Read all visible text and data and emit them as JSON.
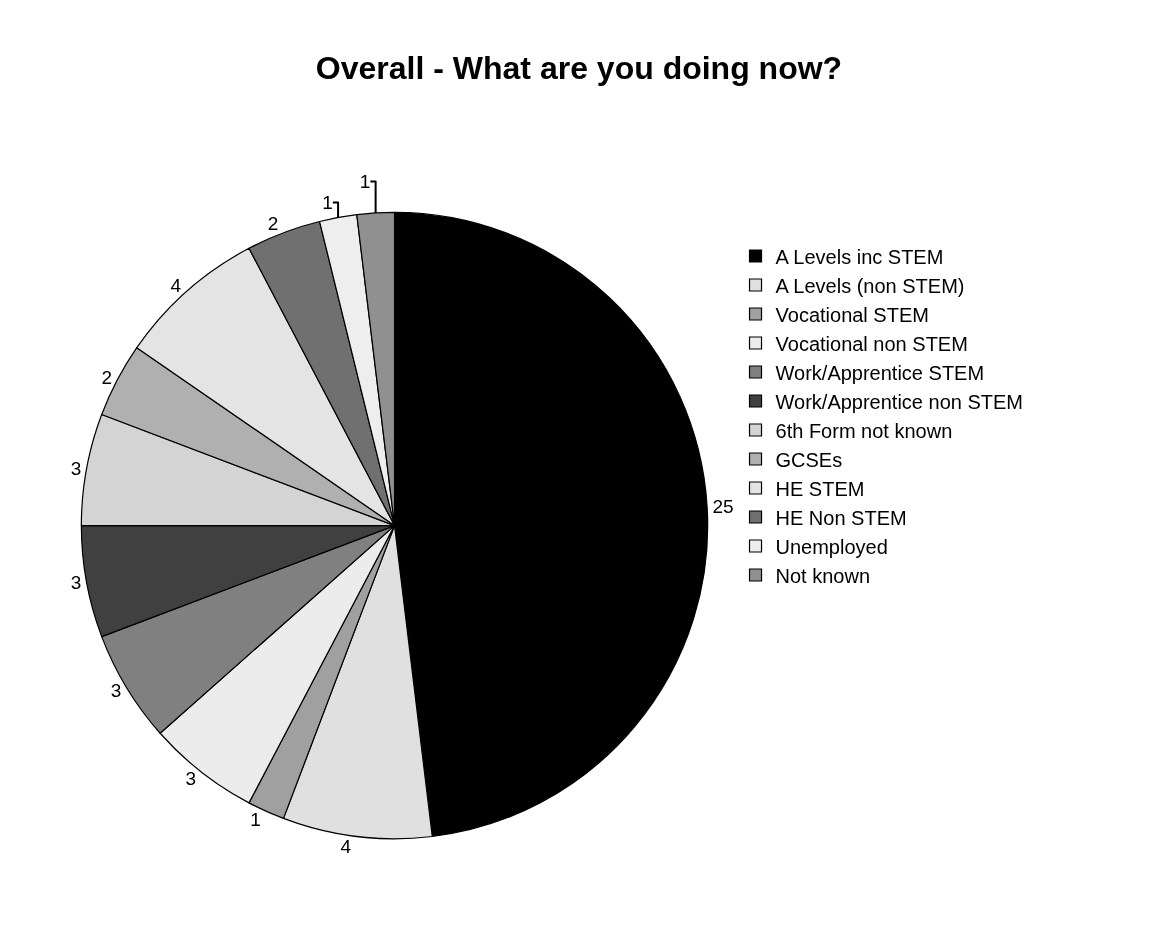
{
  "chart_data": {
    "type": "pie",
    "title": "Overall - What are you doing now?",
    "categories": [
      "A Levels inc STEM",
      "A Levels (non STEM)",
      "Vocational STEM",
      "Vocational non STEM",
      "Work/Apprentice STEM",
      "Work/Apprentice non STEM",
      "6th Form not known",
      "GCSEs",
      "HE STEM",
      "HE Non STEM",
      "Unemployed",
      "Not known"
    ],
    "values": [
      25,
      4,
      1,
      3,
      3,
      3,
      3,
      2,
      4,
      2,
      1,
      1
    ],
    "colors": [
      "#000000",
      "#e0e0e0",
      "#a0a0a0",
      "#ececec",
      "#808080",
      "#404040",
      "#d4d4d4",
      "#b0b0b0",
      "#e4e4e4",
      "#707070",
      "#eeeeee",
      "#909090"
    ],
    "data_labels": true,
    "legend": "right"
  }
}
